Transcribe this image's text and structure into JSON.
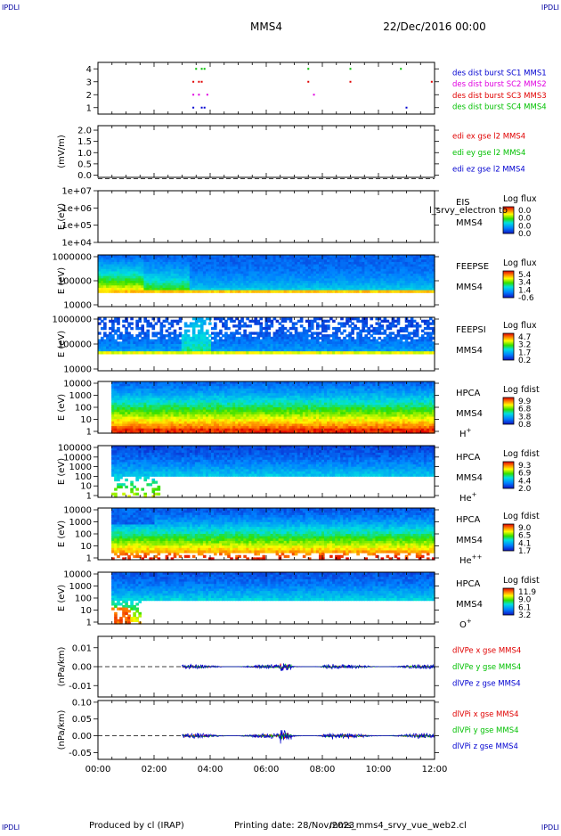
{
  "corner_mark": "IPDLI",
  "header": {
    "title": "MMS4",
    "date": "22/Dec/2016 00:00"
  },
  "footer": {
    "produced_by": "Produced by cl (IRAP)",
    "printing_date": "Printing date: 28/Nov/2023",
    "file_name": "mms_mms4_srvy_vue_web2.cl"
  },
  "time_axis": {
    "ticks": [
      "00:00",
      "02:00",
      "04:00",
      "06:00",
      "08:00",
      "10:00",
      "12:00"
    ],
    "range_hours": [
      0,
      12
    ]
  },
  "colors": {
    "blue": "#0000d0",
    "magenta": "#e000e0",
    "red": "#e00000",
    "green": "#00c000"
  },
  "chart_data": [
    {
      "id": "burst",
      "type": "scatter",
      "yticks": [
        "1",
        "2",
        "3",
        "4"
      ],
      "ylim": [
        0.5,
        4.5
      ],
      "legend": [
        {
          "label": "des dist burst SC1 MMS1",
          "color": "#0000d0"
        },
        {
          "label": "des dist burst SC2 MMS2",
          "color": "#e000e0"
        },
        {
          "label": "des dist burst SC3 MMS3",
          "color": "#e00000"
        },
        {
          "label": "des dist burst SC4 MMS4",
          "color": "#00c000"
        }
      ],
      "series": [
        {
          "sc": 1,
          "color": "#0000d0",
          "times": [
            3.4,
            3.7,
            3.8,
            11.0
          ]
        },
        {
          "sc": 2,
          "color": "#e000e0",
          "times": [
            3.4,
            3.6,
            3.9,
            7.7
          ]
        },
        {
          "sc": 3,
          "color": "#e00000",
          "times": [
            3.4,
            3.6,
            3.7,
            7.5,
            9.0,
            11.9
          ]
        },
        {
          "sc": 4,
          "color": "#00c000",
          "times": [
            3.5,
            3.7,
            3.8,
            7.5,
            9.0,
            10.8
          ]
        }
      ]
    },
    {
      "id": "edi",
      "type": "line",
      "ylabel": "(mV/m)",
      "yticks": [
        "2.0",
        "1.5",
        "1.0",
        "0.5",
        "0.0"
      ],
      "ylim": [
        -0.1,
        2.2
      ],
      "legend": [
        {
          "label": "edi ex gse l2 MMS4",
          "color": "#e00000"
        },
        {
          "label": "edi ey gse l2 MMS4",
          "color": "#00c000"
        },
        {
          "label": "edi ez gse l2 MMS4",
          "color": "#0000d0"
        }
      ]
    },
    {
      "id": "eis",
      "type": "heatmap",
      "ylabel": "E (eV)",
      "yticks": [
        "1e+07",
        "1e+06",
        "1e+05",
        "1e+04"
      ],
      "instrument": "EIS",
      "spacecraft": "MMS4",
      "overlay": "l_srvy_electron to",
      "colorbar": {
        "title": "Log flux",
        "ticks": [
          "0.0",
          "0.0",
          "0.0",
          "0.0"
        ]
      }
    },
    {
      "id": "feepse",
      "type": "heatmap",
      "ylabel": "E (eV)",
      "yticks": [
        "1000000",
        "100000",
        "10000"
      ],
      "instrument": "FEEPSE",
      "spacecraft": "MMS4",
      "colorbar": {
        "title": "Log flux",
        "ticks": [
          "5.4",
          "3.4",
          "1.4",
          "-0.6"
        ]
      }
    },
    {
      "id": "feepsi",
      "type": "heatmap",
      "ylabel": "E (eV)",
      "yticks": [
        "1000000",
        "100000",
        "10000"
      ],
      "instrument": "FEEPSI",
      "spacecraft": "MMS4",
      "colorbar": {
        "title": "Log flux",
        "ticks": [
          "4.7",
          "3.2",
          "1.7",
          "0.2"
        ]
      }
    },
    {
      "id": "hpca_h",
      "type": "heatmap",
      "ylabel": "E (eV)",
      "yticks": [
        "10000",
        "1000",
        "100",
        "10",
        "1"
      ],
      "instrument": "HPCA",
      "spacecraft": "MMS4",
      "species": "H",
      "charge": "+",
      "colorbar": {
        "title": "Log fdist",
        "ticks": [
          "9.9",
          "6.8",
          "3.8",
          "0.8"
        ]
      }
    },
    {
      "id": "hpca_he",
      "type": "heatmap",
      "ylabel": "E (eV)",
      "yticks": [
        "100000",
        "10000",
        "1000",
        "100",
        "10",
        "1"
      ],
      "instrument": "HPCA",
      "spacecraft": "MMS4",
      "species": "He",
      "charge": "+",
      "colorbar": {
        "title": "Log fdist",
        "ticks": [
          "9.3",
          "6.9",
          "4.4",
          "2.0"
        ]
      }
    },
    {
      "id": "hpca_he2",
      "type": "heatmap",
      "ylabel": "E (eV)",
      "yticks": [
        "10000",
        "1000",
        "100",
        "10",
        "1"
      ],
      "instrument": "HPCA",
      "spacecraft": "MMS4",
      "species": "He",
      "charge": "++",
      "colorbar": {
        "title": "Log fdist",
        "ticks": [
          "9.0",
          "6.5",
          "4.1",
          "1.7"
        ]
      }
    },
    {
      "id": "hpca_o",
      "type": "heatmap",
      "ylabel": "E (eV)",
      "yticks": [
        "10000",
        "1000",
        "100",
        "10",
        "1"
      ],
      "instrument": "HPCA",
      "spacecraft": "MMS4",
      "species": "O",
      "charge": "+",
      "colorbar": {
        "title": "Log fdist",
        "ticks": [
          "11.9",
          "9.0",
          "6.1",
          "3.2"
        ]
      }
    },
    {
      "id": "dpe",
      "type": "line",
      "ylabel": "(nPa/km)",
      "yticks": [
        "0.01",
        "0.00",
        "-0.01"
      ],
      "ylim": [
        -0.016,
        0.016
      ],
      "legend": [
        {
          "label": "dlVPe x gse MMS4",
          "color": "#e00000"
        },
        {
          "label": "dlVPe y gse MMS4",
          "color": "#00c000"
        },
        {
          "label": "dlVPe z gse MMS4",
          "color": "#0000d0"
        }
      ]
    },
    {
      "id": "dpi",
      "type": "line",
      "ylabel": "(nPa/km)",
      "yticks": [
        "0.10",
        "0.05",
        "0.00",
        "-0.05"
      ],
      "ylim": [
        -0.07,
        0.105
      ],
      "legend": [
        {
          "label": "dlVPi x gse MMS4",
          "color": "#e00000"
        },
        {
          "label": "dlVPi y gse MMS4",
          "color": "#00c000"
        },
        {
          "label": "dlVPi z gse MMS4",
          "color": "#0000d0"
        }
      ]
    }
  ]
}
